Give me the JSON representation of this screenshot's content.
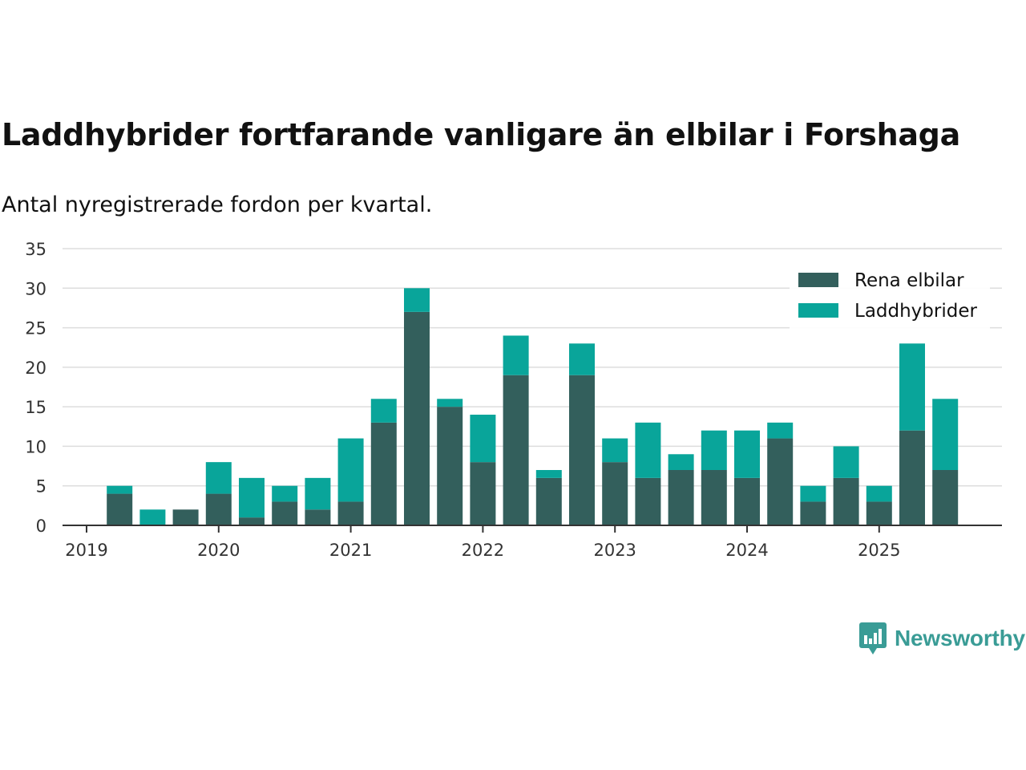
{
  "title": "Laddhybrider fortfarande vanligare än elbilar i Forshaga",
  "subtitle": "Antal nyregistrerade fordon per kvartal.",
  "logo_text": "Newsworthy",
  "colors": {
    "rena": "#335f5c",
    "laddhybrid": "#09a59a",
    "grid": "#dddddd",
    "axis": "#333333"
  },
  "chart_data": {
    "type": "bar",
    "stacked": true,
    "categories": [
      "2019 Q2",
      "2019 Q3",
      "2019 Q4",
      "2020 Q1",
      "2020 Q2",
      "2020 Q3",
      "2020 Q4",
      "2021 Q1",
      "2021 Q2",
      "2021 Q3",
      "2021 Q4",
      "2022 Q1",
      "2022 Q2",
      "2022 Q3",
      "2022 Q4",
      "2023 Q1",
      "2023 Q2",
      "2023 Q3",
      "2023 Q4",
      "2024 Q1",
      "2024 Q2",
      "2024 Q3",
      "2024 Q4",
      "2025 Q1",
      "2025 Q2",
      "2025 Q3"
    ],
    "series": [
      {
        "name": "Rena elbilar",
        "values": [
          4,
          0,
          2,
          4,
          1,
          3,
          2,
          3,
          13,
          27,
          15,
          8,
          19,
          6,
          19,
          8,
          6,
          7,
          7,
          6,
          11,
          3,
          6,
          3,
          12,
          7
        ]
      },
      {
        "name": "Laddhybrider",
        "values": [
          1,
          2,
          0,
          4,
          5,
          2,
          4,
          8,
          3,
          3,
          1,
          6,
          5,
          1,
          4,
          3,
          7,
          2,
          5,
          6,
          2,
          2,
          4,
          2,
          11,
          9
        ]
      }
    ],
    "x_ticks": [
      "2019",
      "2020",
      "2021",
      "2022",
      "2023",
      "2024",
      "2025"
    ],
    "y_ticks": [
      "0",
      "5",
      "10",
      "15",
      "20",
      "25",
      "30",
      "35"
    ],
    "ylim": [
      0,
      35
    ],
    "legend_position": "top-right",
    "xlabel": "",
    "ylabel": ""
  }
}
